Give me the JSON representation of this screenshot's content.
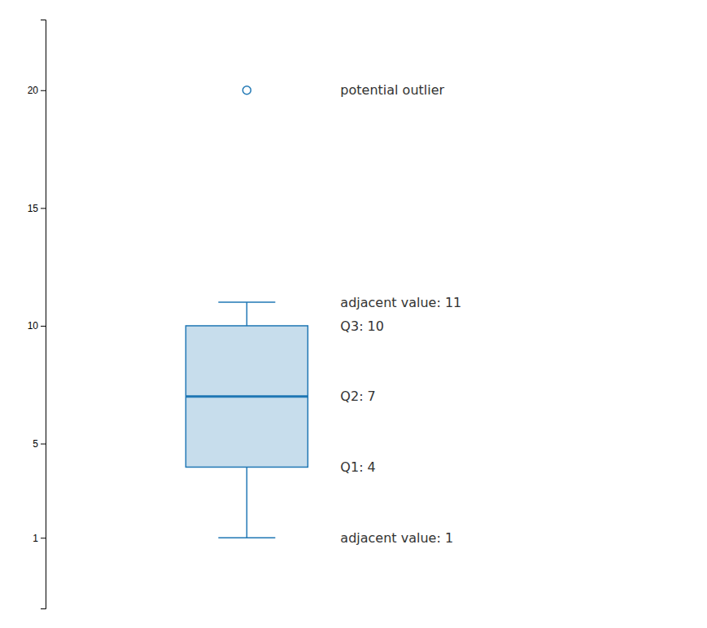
{
  "chart_data": {
    "type": "box",
    "q1": 4,
    "median": 7,
    "q3": 10,
    "whisker_low": 1,
    "whisker_high": 11,
    "outliers": [
      20
    ],
    "ylim": [
      -2,
      23
    ],
    "yticks": [
      20,
      15,
      10,
      5,
      1
    ],
    "tick_labels": "y",
    "annotations": [
      {
        "text": "potential outlier",
        "y": 20
      },
      {
        "text": "adjacent value: 11",
        "y": 11
      },
      {
        "text": "Q2: 7",
        "y": 7
      },
      {
        "text": "adjacent value: 1",
        "y": 1
      },
      {
        "text": "Q3: 10",
        "y": 10
      },
      {
        "text": "Q1: 4",
        "y": 4
      }
    ]
  }
}
